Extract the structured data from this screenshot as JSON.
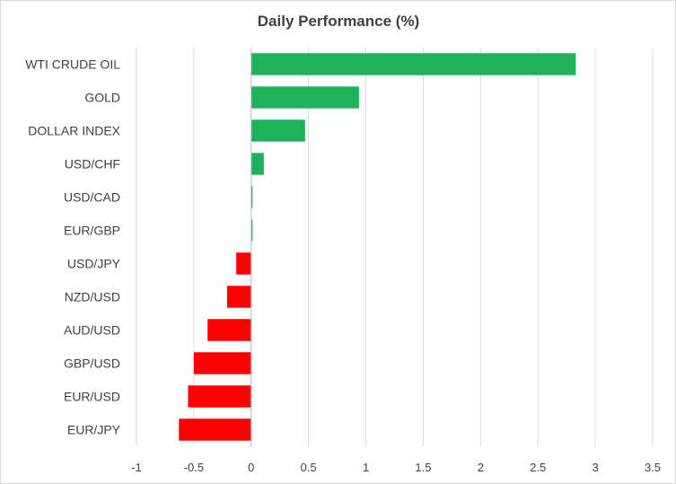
{
  "chart_data": {
    "type": "bar",
    "orientation": "horizontal",
    "title": "Daily Performance  (%)",
    "categories": [
      "WTI CRUDE OIL",
      "GOLD",
      "DOLLAR INDEX",
      "USD/CHF",
      "USD/CAD",
      "EUR/GBP",
      "USD/JPY",
      "NZD/USD",
      "AUD/USD",
      "GBP/USD",
      "EUR/USD",
      "EUR/JPY"
    ],
    "values": [
      2.83,
      0.94,
      0.47,
      0.11,
      0.01,
      0.01,
      -0.13,
      -0.21,
      -0.38,
      -0.5,
      -0.55,
      -0.63
    ],
    "xlim": [
      -1,
      3.5
    ],
    "xticks": [
      "-1",
      "-0.5",
      "0",
      "0.5",
      "1",
      "1.5",
      "2",
      "2.5",
      "3",
      "3.5"
    ],
    "grid": true,
    "legend": "none",
    "colors": {
      "positive": "#1fb25a",
      "negative": "#ff0000",
      "zero": "#e0e0e0",
      "grid": "#d9d9d9",
      "axis": "#bfbfbf"
    }
  }
}
